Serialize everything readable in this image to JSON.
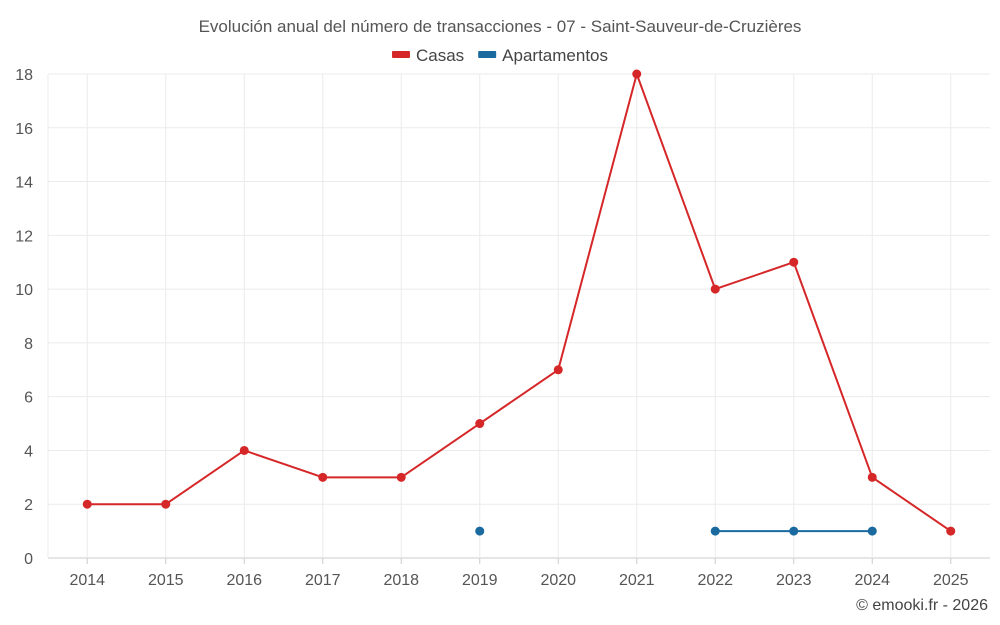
{
  "chart_data": {
    "type": "line",
    "title": "Evolución anual del número de transacciones - 07 - Saint-Sauveur-de-Cruzières",
    "categories": [
      "2014",
      "2015",
      "2016",
      "2017",
      "2018",
      "2019",
      "2020",
      "2021",
      "2022",
      "2023",
      "2024",
      "2025"
    ],
    "series": [
      {
        "name": "Casas",
        "color": "#d62728",
        "values": [
          2,
          2,
          4,
          3,
          3,
          5,
          7,
          18,
          10,
          11,
          3,
          1
        ]
      },
      {
        "name": "Apartamentos",
        "color": "#1a6aa0",
        "values": [
          null,
          null,
          null,
          null,
          null,
          1,
          null,
          null,
          1,
          1,
          1,
          null
        ]
      }
    ],
    "ylim": [
      0,
      18
    ],
    "yticks": [
      0,
      2,
      4,
      6,
      8,
      10,
      12,
      14,
      16,
      18
    ],
    "grid": true,
    "legend": "top-center"
  },
  "credit": "© emooki.fr - 2026"
}
